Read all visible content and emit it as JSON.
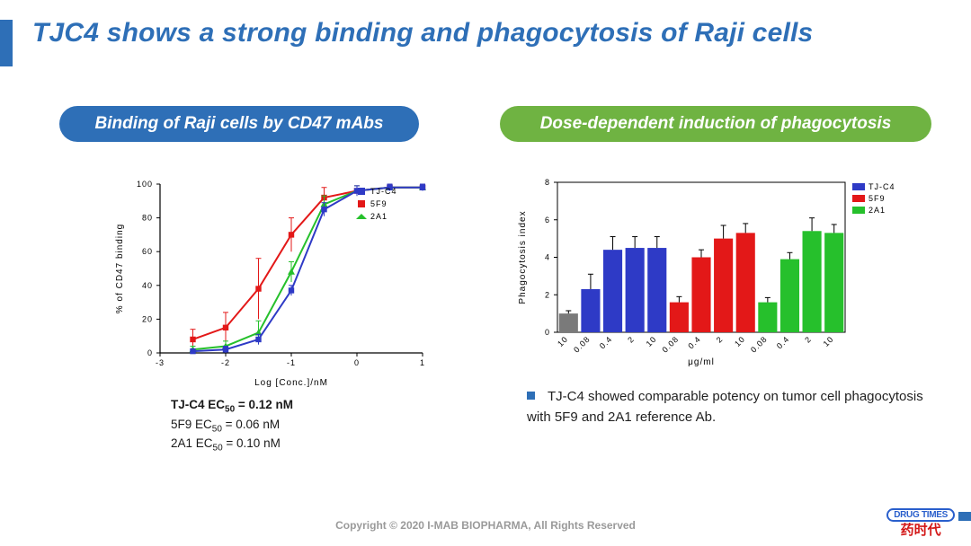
{
  "title": "TJC4 shows a strong binding and phagocytosis of Raji cells",
  "copyright": "Copyright © 2020 I-MAB BIOPHARMA, All Rights Reserved",
  "logo": {
    "outer": "#2e8f3f",
    "inner": "#2e6fb7"
  },
  "watermark": {
    "en_a": "DRUG",
    "en_b": "TIMES",
    "cn": "药时代"
  },
  "left_panel": {
    "pill_label": "Binding of Raji cells by CD47 mAbs",
    "ec50_lines": [
      {
        "bold": true,
        "name": "TJ-C4",
        "value": "0.12 nM"
      },
      {
        "bold": false,
        "name": "5F9",
        "value": "0.06 nM"
      },
      {
        "bold": false,
        "name": "2A1",
        "value": "0.10 nM"
      }
    ],
    "chart": {
      "type": "line",
      "x_label": "Log [Conc.]/nM",
      "y_label": "% of CD47 binding",
      "xlim": [
        -3,
        1
      ],
      "xticks": [
        -3,
        -2,
        -1,
        0,
        1
      ],
      "ylim": [
        0,
        100
      ],
      "yticks": [
        0,
        20,
        40,
        60,
        80,
        100
      ],
      "series": [
        {
          "name": "TJ-C4",
          "color": "#2e3ac6",
          "marker": "square",
          "x": [
            -2.5,
            -2.0,
            -1.5,
            -1.0,
            -0.5,
            0.0,
            0.5,
            1.0
          ],
          "y": [
            1,
            2,
            8,
            37,
            85,
            96,
            98,
            98
          ],
          "err": [
            1,
            2,
            3,
            3,
            4,
            3,
            2,
            2
          ]
        },
        {
          "name": "5F9",
          "color": "#e31818",
          "marker": "square",
          "x": [
            -2.5,
            -2.0,
            -1.5,
            -1.0,
            -0.5,
            0.0,
            0.5,
            1.0
          ],
          "y": [
            8,
            15,
            38,
            70,
            92,
            96,
            98,
            98
          ],
          "err": [
            6,
            9,
            18,
            10,
            6,
            3,
            2,
            2
          ]
        },
        {
          "name": "2A1",
          "color": "#26c02c",
          "marker": "triangle",
          "x": [
            -2.5,
            -2.0,
            -1.5,
            -1.0,
            -0.5,
            0.0,
            0.5,
            1.0
          ],
          "y": [
            2,
            4,
            12,
            48,
            88,
            96,
            98,
            98
          ],
          "err": [
            2,
            3,
            7,
            6,
            5,
            3,
            2,
            2
          ]
        }
      ]
    }
  },
  "right_panel": {
    "pill_label": "Dose-dependent induction of phagocytosis",
    "bullet": "TJ-C4 showed comparable potency on tumor cell phagocytosis with 5F9 and 2A1 reference Ab.",
    "chart": {
      "type": "bar",
      "x_label": "μg/ml",
      "y_label": "Phagocytosis index",
      "ylim": [
        0,
        8
      ],
      "yticks": [
        0,
        2,
        4,
        6,
        8
      ],
      "legend": [
        {
          "name": "TJ-C4",
          "color": "#2e3ac6"
        },
        {
          "name": "5F9",
          "color": "#e31818"
        },
        {
          "name": "2A1",
          "color": "#26c02c"
        }
      ],
      "control": {
        "label": "10",
        "value": 1.0,
        "err": 0.15,
        "color": "#7a7a7a"
      },
      "groups": [
        {
          "color": "#2e3ac6",
          "labels": [
            "0.08",
            "0.4",
            "2",
            "10"
          ],
          "values": [
            2.3,
            4.4,
            4.5,
            4.5
          ],
          "err": [
            0.8,
            0.7,
            0.6,
            0.6
          ]
        },
        {
          "color": "#e31818",
          "labels": [
            "0.08",
            "0.4",
            "2",
            "10"
          ],
          "values": [
            1.6,
            4.0,
            5.0,
            5.3
          ],
          "err": [
            0.3,
            0.4,
            0.7,
            0.5
          ]
        },
        {
          "color": "#26c02c",
          "labels": [
            "0.08",
            "0.4",
            "2",
            "10"
          ],
          "values": [
            1.6,
            3.9,
            5.4,
            5.3
          ],
          "err": [
            0.25,
            0.35,
            0.7,
            0.45
          ]
        }
      ]
    }
  }
}
